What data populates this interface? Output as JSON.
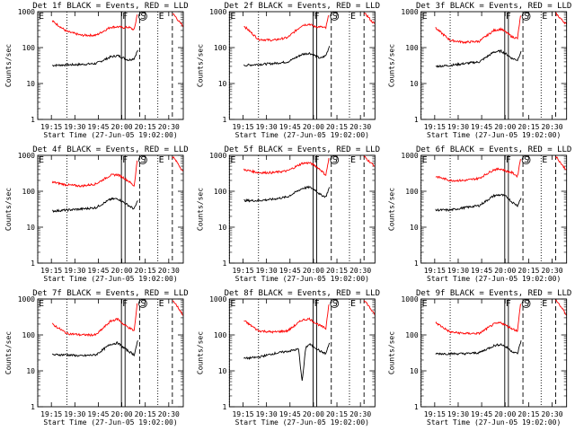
{
  "colors": {
    "events": "#000000",
    "lld": "#ff0000",
    "axes": "#000000",
    "background": "#ffffff"
  },
  "chart_data": {
    "type": "line",
    "layout": "3x3 grid of detector panels",
    "shared": {
      "xlabel": "Start Time (27-Jun-05 19:02:00)",
      "ylabel": "Counts/sec",
      "yscale": "log",
      "ylim": [
        1,
        1000
      ],
      "y_tick_labels": [
        "1",
        "10",
        "100",
        "1000"
      ],
      "xlim_minutes_after_19_00": [
        62,
        102
      ],
      "x_tick_labels": [
        "19:15",
        "19:30",
        "19:45",
        "20:00",
        "20:15",
        "20:30"
      ],
      "x_tick_values": [
        75,
        90,
        105,
        120,
        135,
        150
      ],
      "legend": "in title: BLACK = Events, RED = LLD",
      "markers": [
        {
          "label": "E",
          "time": 62,
          "style": "dotted"
        },
        {
          "label": "",
          "time": 70,
          "style": "dotted"
        },
        {
          "label": "F",
          "time": 85,
          "style": "solid"
        },
        {
          "label": "",
          "time": 86,
          "style": "solid"
        },
        {
          "label": "S",
          "time": 90,
          "style": "dashed",
          "circled": true
        },
        {
          "label": "E",
          "time": 95,
          "style": "dotted"
        },
        {
          "label": "",
          "time": 99,
          "style": "dashed"
        }
      ]
    },
    "series_names": [
      "Events",
      "LLD"
    ],
    "panels": [
      {
        "title": "Det 1f BLACK = Events, RED = LLD",
        "series": [
          {
            "name": "Events",
            "color": "black",
            "t": [
              66,
              70,
              74,
              78,
              82,
              84,
              85.5,
              87,
              88.5,
              89.5
            ],
            "values": [
              32,
              33,
              34,
              36,
              55,
              60,
              52,
              45,
              50,
              85
            ]
          },
          {
            "name": "LLD",
            "color": "red",
            "t": [
              66,
              70,
              74,
              78,
              82,
              84,
              85.5,
              87,
              88.5,
              89.5,
              99,
              100,
              101,
              102
            ],
            "values": [
              550,
              280,
              220,
              220,
              370,
              380,
              360,
              370,
              310,
              1000,
              900,
              700,
              500,
              400
            ]
          }
        ]
      },
      {
        "title": "Det 2f BLACK = Events, RED = LLD",
        "series": [
          {
            "name": "Events",
            "color": "black",
            "t": [
              66,
              70,
              74,
              78,
              82,
              84,
              85.5,
              87,
              88.5,
              89.5
            ],
            "values": [
              32,
              34,
              36,
              40,
              65,
              70,
              60,
              50,
              60,
              110
            ]
          },
          {
            "name": "LLD",
            "color": "red",
            "t": [
              66,
              70,
              74,
              78,
              82,
              84,
              85.5,
              87,
              88.5,
              89.5,
              99,
              100,
              101,
              102
            ],
            "values": [
              400,
              170,
              160,
              190,
              420,
              450,
              380,
              380,
              350,
              1000,
              900,
              750,
              550,
              450
            ]
          }
        ]
      },
      {
        "title": "Det 3f BLACK = Events, RED = LLD",
        "series": [
          {
            "name": "Events",
            "color": "black",
            "t": [
              66,
              70,
              74,
              78,
              82,
              84,
              85.5,
              87,
              88.5,
              89.5
            ],
            "values": [
              30,
              32,
              36,
              40,
              75,
              80,
              65,
              50,
              45,
              80
            ]
          },
          {
            "name": "LLD",
            "color": "red",
            "t": [
              66,
              70,
              74,
              78,
              82,
              84,
              85.5,
              87,
              88.5,
              89.5,
              99,
              100,
              101,
              102
            ],
            "values": [
              350,
              160,
              140,
              150,
              300,
              330,
              260,
              200,
              180,
              1000,
              900,
              700,
              550,
              450
            ]
          }
        ]
      },
      {
        "title": "Det 4f BLACK = Events, RED = LLD",
        "series": [
          {
            "name": "Events",
            "color": "black",
            "t": [
              66,
              70,
              74,
              78,
              82,
              84,
              85.5,
              87,
              88.5,
              89.5
            ],
            "values": [
              28,
              30,
              32,
              35,
              60,
              62,
              50,
              40,
              32,
              55
            ]
          },
          {
            "name": "LLD",
            "color": "red",
            "t": [
              66,
              70,
              74,
              78,
              82,
              84,
              85.5,
              87,
              88.5,
              89.5,
              99,
              100,
              101,
              102
            ],
            "values": [
              180,
              150,
              140,
              160,
              280,
              290,
              240,
              190,
              140,
              1000,
              950,
              700,
              500,
              350
            ]
          }
        ]
      },
      {
        "title": "Det 5f BLACK = Events, RED = LLD",
        "series": [
          {
            "name": "Events",
            "color": "black",
            "t": [
              66,
              70,
              74,
              78,
              82,
              84,
              85.5,
              87,
              88.5,
              89.5
            ],
            "values": [
              55,
              55,
              60,
              70,
              120,
              130,
              110,
              80,
              70,
              130
            ]
          },
          {
            "name": "LLD",
            "color": "red",
            "t": [
              66,
              70,
              74,
              78,
              82,
              84,
              85.5,
              87,
              88.5,
              89.5,
              99,
              100,
              101,
              102
            ],
            "values": [
              400,
              330,
              330,
              370,
              600,
              620,
              520,
              400,
              280,
              1000,
              950,
              750,
              600,
              500
            ]
          }
        ]
      },
      {
        "title": "Det 6f BLACK = Events, RED = LLD",
        "series": [
          {
            "name": "Events",
            "color": "black",
            "t": [
              66,
              70,
              74,
              78,
              82,
              84,
              85.5,
              87,
              88.5,
              89.5
            ],
            "values": [
              30,
              30,
              35,
              40,
              75,
              80,
              70,
              50,
              40,
              65
            ]
          },
          {
            "name": "LLD",
            "color": "red",
            "t": [
              66,
              70,
              74,
              78,
              82,
              84,
              85.5,
              87,
              88.5,
              89.5,
              99,
              100,
              101,
              102
            ],
            "values": [
              260,
              200,
              200,
              230,
              400,
              420,
              360,
              330,
              260,
              1000,
              950,
              700,
              500,
              400
            ]
          }
        ]
      },
      {
        "title": "Det 7f BLACK = Events, RED = LLD",
        "series": [
          {
            "name": "Events",
            "color": "black",
            "t": [
              66,
              70,
              74,
              78,
              82,
              84,
              85.5,
              87,
              88.5,
              89.5
            ],
            "values": [
              28,
              28,
              26,
              28,
              55,
              60,
              45,
              35,
              28,
              70
            ]
          },
          {
            "name": "LLD",
            "color": "red",
            "t": [
              66,
              70,
              74,
              78,
              82,
              84,
              85.5,
              87,
              88.5,
              89.5,
              99,
              100,
              101,
              102
            ],
            "values": [
              200,
              110,
              100,
              100,
              240,
              280,
              200,
              160,
              130,
              1000,
              950,
              700,
              500,
              350
            ]
          }
        ]
      },
      {
        "title": "Det 8f BLACK = Events, RED = LLD",
        "series": [
          {
            "name": "Events",
            "color": "black",
            "t": [
              66,
              70,
              74,
              78,
              81,
              82,
              83,
              84,
              85.5,
              87,
              88.5,
              89.5
            ],
            "values": [
              22,
              24,
              30,
              35,
              40,
              5,
              45,
              55,
              45,
              35,
              30,
              60
            ]
          },
          {
            "name": "LLD",
            "color": "red",
            "t": [
              66,
              70,
              74,
              78,
              82,
              84,
              85.5,
              87,
              88.5,
              89.5,
              99,
              100,
              101,
              102
            ],
            "values": [
              250,
              130,
              120,
              130,
              260,
              280,
              220,
              180,
              150,
              1000,
              950,
              700,
              500,
              350
            ]
          }
        ]
      },
      {
        "title": "Det 9f BLACK = Events, RED = LLD",
        "series": [
          {
            "name": "Events",
            "color": "black",
            "t": [
              66,
              70,
              74,
              78,
              82,
              84,
              85.5,
              87,
              88.5,
              89.5
            ],
            "values": [
              30,
              30,
              30,
              32,
              50,
              55,
              45,
              35,
              30,
              70
            ]
          },
          {
            "name": "LLD",
            "color": "red",
            "t": [
              66,
              70,
              74,
              78,
              82,
              84,
              85.5,
              87,
              88.5,
              89.5,
              99,
              100,
              101,
              102
            ],
            "values": [
              220,
              120,
              110,
              110,
              200,
              220,
              180,
              150,
              130,
              1000,
              950,
              700,
              500,
              350
            ]
          }
        ]
      }
    ]
  }
}
